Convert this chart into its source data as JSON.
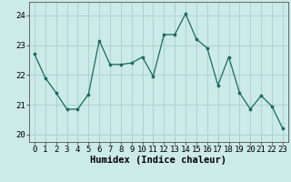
{
  "x": [
    0,
    1,
    2,
    3,
    4,
    5,
    6,
    7,
    8,
    9,
    10,
    11,
    12,
    13,
    14,
    15,
    16,
    17,
    18,
    19,
    20,
    21,
    22,
    23
  ],
  "y": [
    22.7,
    21.9,
    21.4,
    20.85,
    20.85,
    21.35,
    23.15,
    22.35,
    22.35,
    22.4,
    22.6,
    21.95,
    23.35,
    23.35,
    24.05,
    23.2,
    22.9,
    21.65,
    22.6,
    21.4,
    20.85,
    21.3,
    20.95,
    20.2
  ],
  "line_color": "#1a6b5a",
  "marker": "o",
  "marker_size": 2.2,
  "bg_color": "#cceae8",
  "grid_color": "#aad4d0",
  "xlabel": "Humidex (Indice chaleur)",
  "ylim": [
    19.75,
    24.45
  ],
  "xlim": [
    -0.5,
    23.5
  ],
  "yticks": [
    20,
    21,
    22,
    23,
    24
  ],
  "xticks": [
    0,
    1,
    2,
    3,
    4,
    5,
    6,
    7,
    8,
    9,
    10,
    11,
    12,
    13,
    14,
    15,
    16,
    17,
    18,
    19,
    20,
    21,
    22,
    23
  ],
  "tick_fontsize": 6.5,
  "xlabel_fontsize": 7.5,
  "axis_color": "#666666"
}
